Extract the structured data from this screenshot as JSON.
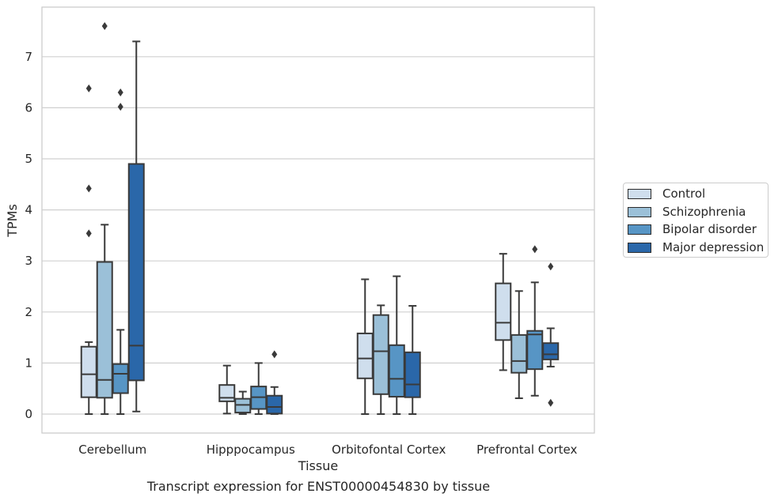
{
  "chart_data": {
    "type": "box",
    "title": "",
    "xlabel": "Tissue",
    "ylabel": "TPMs",
    "caption": "Transcript expression for ENST00000454830 by tissue",
    "ylim": [
      -0.35,
      7.9
    ],
    "yticks": [
      0,
      1,
      2,
      3,
      4,
      5,
      6,
      7
    ],
    "grid": true,
    "legend_position": "right",
    "categories": [
      "Cerebellum",
      "Hipppocampus",
      "Orbitofontal Cortex",
      "Prefrontal Cortex"
    ],
    "series": [
      {
        "name": "Control",
        "color": "#cfdeed",
        "boxes": [
          {
            "whislo": 0.0,
            "q1": 0.33,
            "med": 0.78,
            "q3": 1.32,
            "whishi": 1.41,
            "fliers": [
              3.54,
              4.42,
              6.38
            ]
          },
          {
            "whislo": 0.01,
            "q1": 0.25,
            "med": 0.32,
            "q3": 0.57,
            "whishi": 0.95,
            "fliers": []
          },
          {
            "whislo": 0.0,
            "q1": 0.7,
            "med": 1.09,
            "q3": 1.58,
            "whishi": 2.64,
            "fliers": []
          },
          {
            "whislo": 0.86,
            "q1": 1.45,
            "med": 1.79,
            "q3": 2.56,
            "whishi": 3.14,
            "fliers": []
          }
        ]
      },
      {
        "name": "Schizophrenia",
        "color": "#9bc0d8",
        "boxes": [
          {
            "whislo": 0.0,
            "q1": 0.32,
            "med": 0.67,
            "q3": 2.98,
            "whishi": 3.71,
            "fliers": [
              7.6
            ]
          },
          {
            "whislo": 0.0,
            "q1": 0.03,
            "med": 0.18,
            "q3": 0.3,
            "whishi": 0.44,
            "fliers": []
          },
          {
            "whislo": 0.0,
            "q1": 0.39,
            "med": 1.23,
            "q3": 1.94,
            "whishi": 2.13,
            "fliers": []
          },
          {
            "whislo": 0.31,
            "q1": 0.81,
            "med": 1.04,
            "q3": 1.55,
            "whishi": 2.41,
            "fliers": []
          }
        ]
      },
      {
        "name": "Bipolar disorder",
        "color": "#5795c5",
        "boxes": [
          {
            "whislo": 0.0,
            "q1": 0.41,
            "med": 0.79,
            "q3": 0.98,
            "whishi": 1.65,
            "fliers": [
              6.02,
              6.3
            ]
          },
          {
            "whislo": 0.0,
            "q1": 0.1,
            "med": 0.33,
            "q3": 0.54,
            "whishi": 1.0,
            "fliers": []
          },
          {
            "whislo": 0.0,
            "q1": 0.34,
            "med": 0.69,
            "q3": 1.35,
            "whishi": 2.7,
            "fliers": []
          },
          {
            "whislo": 0.36,
            "q1": 0.88,
            "med": 1.56,
            "q3": 1.63,
            "whishi": 2.58,
            "fliers": [
              3.23
            ]
          }
        ]
      },
      {
        "name": "Major depression",
        "color": "#2a67a9",
        "boxes": [
          {
            "whislo": 0.05,
            "q1": 0.66,
            "med": 1.34,
            "q3": 4.9,
            "whishi": 7.3,
            "fliers": []
          },
          {
            "whislo": 0.0,
            "q1": 0.01,
            "med": 0.14,
            "q3": 0.36,
            "whishi": 0.53,
            "fliers": [
              1.17
            ]
          },
          {
            "whislo": 0.0,
            "q1": 0.33,
            "med": 0.58,
            "q3": 1.21,
            "whishi": 2.12,
            "fliers": []
          },
          {
            "whislo": 0.93,
            "q1": 1.07,
            "med": 1.17,
            "q3": 1.39,
            "whishi": 1.68,
            "fliers": [
              0.22,
              2.89
            ]
          }
        ]
      }
    ]
  }
}
